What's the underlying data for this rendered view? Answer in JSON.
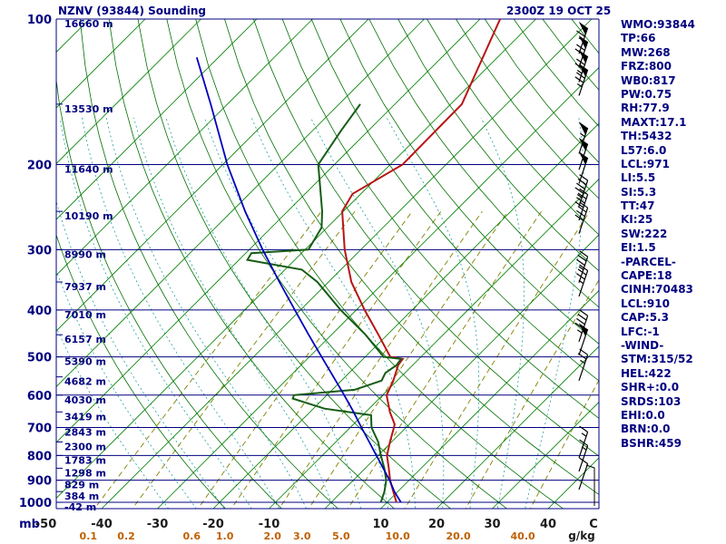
{
  "header": {
    "station_title": "NZNV (93844) Sounding",
    "timestamp": "2300Z 19 OCT 25"
  },
  "colors": {
    "navy": "#000080",
    "grid_green": "#008000",
    "dry_adiabat_green": "#007000",
    "moist_cyan": "#20a0a0",
    "mixing_olive": "#808000",
    "mixing_label_orange": "#c06000",
    "temp_trace_red": "#b81414",
    "dewpoint_trace_green": "#155c15",
    "parcel_trace_blue": "#0000bb",
    "barb_black": "#000000",
    "bottom_label_dark": "#1a1a1a"
  },
  "stats": {
    "lines": [
      "WMO:93844",
      "TP:66",
      "MW:268",
      "FRZ:800",
      "WB0:817",
      "PW:0.75",
      "RH:77.9",
      "MAXT:17.1",
      "TH:5432",
      "L57:6.0",
      "LCL:971",
      "LI:5.5",
      "SI:5.3",
      "TT:47",
      "KI:25",
      "SW:222",
      "EI:1.5",
      "-PARCEL-",
      "CAPE:18",
      "CINH:70483",
      "LCL:910",
      "CAP:5.3",
      "LFC:-1",
      "-WIND-",
      "STM:315/52",
      "HEL:422",
      "SHR+:0.0",
      "SRDS:103",
      "EHI:0.0",
      "BRN:0.0",
      "BSHR:459"
    ]
  },
  "axes": {
    "pressure_unit": "mb",
    "temp_unit": "C",
    "mixing_unit": "g/kg",
    "pressure_ticks": [
      100,
      200,
      300,
      400,
      500,
      600,
      700,
      800,
      900,
      1000
    ],
    "temp_ticks": [
      -50,
      -40,
      -30,
      -20,
      -10,
      10,
      20,
      30,
      40
    ],
    "mixing_ratio_values": [
      "0.1",
      "0.2",
      "0.6",
      "1.0",
      "2.0",
      "3.0",
      "5.0",
      "10.0",
      "20.0",
      "40.0"
    ],
    "height_labels": [
      {
        "p": 100,
        "label": "16660 m"
      },
      {
        "p": 150,
        "label": "13530 m"
      },
      {
        "p": 200,
        "label": "11640 m"
      },
      {
        "p": 250,
        "label": "10190 m"
      },
      {
        "p": 300,
        "label": "8990 m"
      },
      {
        "p": 350,
        "label": "7937 m"
      },
      {
        "p": 400,
        "label": "7010 m"
      },
      {
        "p": 450,
        "label": "6157 m"
      },
      {
        "p": 500,
        "label": "5390 m"
      },
      {
        "p": 550,
        "label": "4682 m"
      },
      {
        "p": 600,
        "label": "4030 m"
      },
      {
        "p": 650,
        "label": "3419 m"
      },
      {
        "p": 700,
        "label": "2843 m"
      },
      {
        "p": 750,
        "label": "2300 m"
      },
      {
        "p": 800,
        "label": "1783 m"
      },
      {
        "p": 850,
        "label": "1298 m"
      },
      {
        "p": 900,
        "label": "829 m"
      },
      {
        "p": 950,
        "label": "384 m"
      },
      {
        "p": 1000,
        "label": "-42 m"
      }
    ]
  },
  "chart_data": {
    "type": "line",
    "subtype": "skew-t-log-p",
    "title": "NZNV (93844) Sounding",
    "pressure_range_mb": [
      100,
      1000
    ],
    "temp_axis_range_c": [
      -50,
      40
    ],
    "isotherm_step_c": 10,
    "dry_adiabat_theta_c": {
      "min": -20,
      "max": 180,
      "step": 10
    },
    "moist_adiabat_start_c": {
      "min": -30,
      "max": 35,
      "step": 5
    },
    "series": [
      {
        "name": "temperature",
        "color": "#b81414",
        "points_p_t": [
          [
            1000,
            11.7
          ],
          [
            950,
            9.2
          ],
          [
            900,
            6.6
          ],
          [
            850,
            4.2
          ],
          [
            800,
            1.6
          ],
          [
            750,
            -0.3
          ],
          [
            710,
            -1.8
          ],
          [
            690,
            -2.6
          ],
          [
            650,
            -5.7
          ],
          [
            600,
            -9.3
          ],
          [
            560,
            -10.7
          ],
          [
            520,
            -12.6
          ],
          [
            505,
            -12.9
          ],
          [
            500,
            -15.5
          ],
          [
            450,
            -21.6
          ],
          [
            400,
            -28.5
          ],
          [
            350,
            -35.9
          ],
          [
            300,
            -42.9
          ],
          [
            250,
            -50.2
          ],
          [
            230,
            -51.5
          ],
          [
            200,
            -47.8
          ],
          [
            150,
            -48.0
          ],
          [
            100,
            -56.4
          ]
        ]
      },
      {
        "name": "dewpoint",
        "color": "#155c15",
        "points_p_t": [
          [
            1000,
            8.9
          ],
          [
            950,
            7.6
          ],
          [
            900,
            5.9
          ],
          [
            850,
            3.4
          ],
          [
            800,
            0.5
          ],
          [
            750,
            -2.4
          ],
          [
            700,
            -6.2
          ],
          [
            660,
            -8.5
          ],
          [
            640,
            -18.0
          ],
          [
            610,
            -25.5
          ],
          [
            600,
            -25.9
          ],
          [
            585,
            -16.0
          ],
          [
            560,
            -12.8
          ],
          [
            540,
            -13.5
          ],
          [
            520,
            -12.9
          ],
          [
            505,
            -13.2
          ],
          [
            500,
            -16.7
          ],
          [
            450,
            -23.9
          ],
          [
            400,
            -32.8
          ],
          [
            350,
            -42.0
          ],
          [
            330,
            -47.0
          ],
          [
            315,
            -58.5
          ],
          [
            305,
            -59.0
          ],
          [
            300,
            -49.4
          ],
          [
            270,
            -51.0
          ],
          [
            250,
            -53.8
          ],
          [
            200,
            -62.9
          ],
          [
            170,
            -64.9
          ],
          [
            150,
            -66.2
          ]
        ]
      },
      {
        "name": "parcel",
        "color": "#0000bb",
        "points_p_t": [
          [
            1000,
            12.5
          ],
          [
            950,
            9.4
          ],
          [
            900,
            6.5
          ],
          [
            850,
            3.2
          ],
          [
            800,
            -0.3
          ],
          [
            750,
            -4.0
          ],
          [
            700,
            -8.0
          ],
          [
            650,
            -12.2
          ],
          [
            600,
            -16.9
          ],
          [
            550,
            -22.1
          ],
          [
            500,
            -27.8
          ],
          [
            450,
            -34.1
          ],
          [
            400,
            -41.0
          ],
          [
            350,
            -48.8
          ],
          [
            300,
            -57.6
          ],
          [
            250,
            -67.6
          ],
          [
            200,
            -79.2
          ],
          [
            150,
            -93.0
          ],
          [
            120,
            -103.9
          ]
        ]
      }
    ],
    "wind_barbs": [
      {
        "p": 118,
        "dir": 315,
        "spd": 65
      },
      {
        "p": 126,
        "dir": 315,
        "spd": 70
      },
      {
        "p": 135,
        "dir": 315,
        "spd": 75
      },
      {
        "p": 144,
        "dir": 315,
        "spd": 75
      },
      {
        "p": 190,
        "dir": 315,
        "spd": 55
      },
      {
        "p": 205,
        "dir": 315,
        "spd": 50
      },
      {
        "p": 219,
        "dir": 315,
        "spd": 50
      },
      {
        "p": 244,
        "dir": 315,
        "spd": 45
      },
      {
        "p": 261,
        "dir": 315,
        "spd": 40
      },
      {
        "p": 278,
        "dir": 315,
        "spd": 40
      },
      {
        "p": 351,
        "dir": 315,
        "spd": 35
      },
      {
        "p": 375,
        "dir": 315,
        "spd": 35
      },
      {
        "p": 465,
        "dir": 315,
        "spd": 45
      },
      {
        "p": 496,
        "dir": 315,
        "spd": 50
      },
      {
        "p": 560,
        "dir": 315,
        "spd": 25
      },
      {
        "p": 809,
        "dir": 315,
        "spd": 15
      },
      {
        "p": 863,
        "dir": 315,
        "spd": 15
      },
      {
        "p": 941,
        "dir": 315,
        "spd": 10
      }
    ]
  }
}
